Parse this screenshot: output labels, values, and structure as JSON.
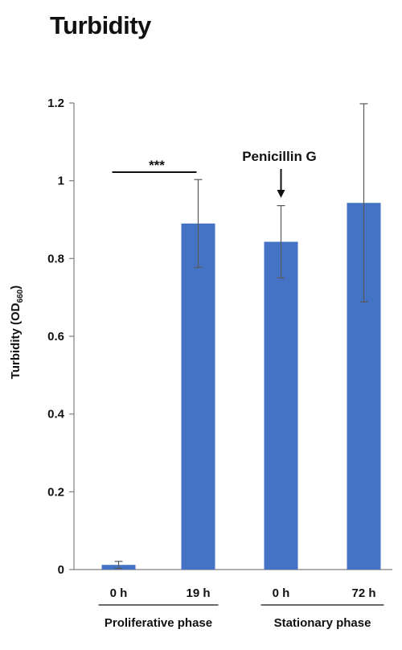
{
  "chart_data": {
    "type": "bar",
    "title": "Turbidity",
    "ylabel": "Turbidity (OD",
    "ylabel_subscript": "660",
    "ylabel_suffix": ")",
    "ylim": [
      0,
      1.2
    ],
    "yticks": [
      0,
      0.2,
      0.4,
      0.6,
      0.8,
      1,
      1.2
    ],
    "ytick_labels": [
      "0",
      "0.2",
      "0.4",
      "0.6",
      "0.8",
      "1",
      "1.2"
    ],
    "categories": [
      "0 h",
      "19 h",
      "0 h",
      "72 h"
    ],
    "values": [
      0.012,
      0.89,
      0.843,
      0.943
    ],
    "error_bars": [
      0.009,
      0.113,
      0.093,
      0.255
    ],
    "groups": [
      {
        "label": "Proliferative phase",
        "categories": [
          0,
          1
        ]
      },
      {
        "label": "Stationary phase",
        "categories": [
          2,
          3
        ]
      }
    ],
    "annotations": {
      "significance": {
        "text": "***",
        "from_category": 0,
        "to_category": 1,
        "y": 1.02
      },
      "arrow": {
        "text": "Penicillin G",
        "category": 2
      }
    },
    "colors": {
      "bar": "#4472C4",
      "axis": "#7f7f7f",
      "error": "#595959",
      "text": "#111111"
    },
    "grid": false,
    "legend": "none"
  }
}
